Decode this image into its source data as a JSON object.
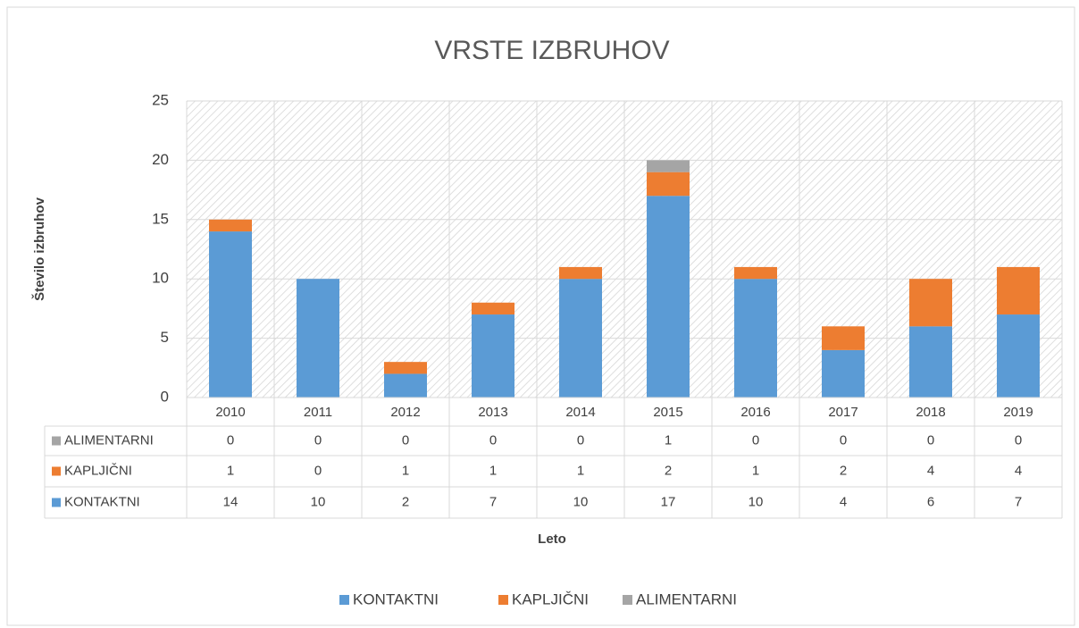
{
  "chart_data": {
    "type": "bar",
    "stacked": true,
    "title": "VRSTE IZBRUHOV",
    "xlabel": "Leto",
    "ylabel": "Število izbruhov",
    "categories": [
      "2010",
      "2011",
      "2012",
      "2013",
      "2014",
      "2015",
      "2016",
      "2017",
      "2018",
      "2019"
    ],
    "series": [
      {
        "name": "KONTAKTNI",
        "color": "#5b9bd5",
        "values": [
          14,
          10,
          2,
          7,
          10,
          17,
          10,
          4,
          6,
          7
        ]
      },
      {
        "name": "KAPLJIČNI",
        "color": "#ed7d31",
        "values": [
          1,
          0,
          1,
          1,
          1,
          2,
          1,
          2,
          4,
          4
        ]
      },
      {
        "name": "ALIMENTARNI",
        "color": "#a5a5a5",
        "values": [
          0,
          0,
          0,
          0,
          0,
          1,
          0,
          0,
          0,
          0
        ]
      }
    ],
    "ylim": [
      0,
      25
    ],
    "yticks": [
      0,
      5,
      10,
      15,
      20,
      25
    ],
    "grid": true,
    "legend": "bottom",
    "data_table": true
  }
}
